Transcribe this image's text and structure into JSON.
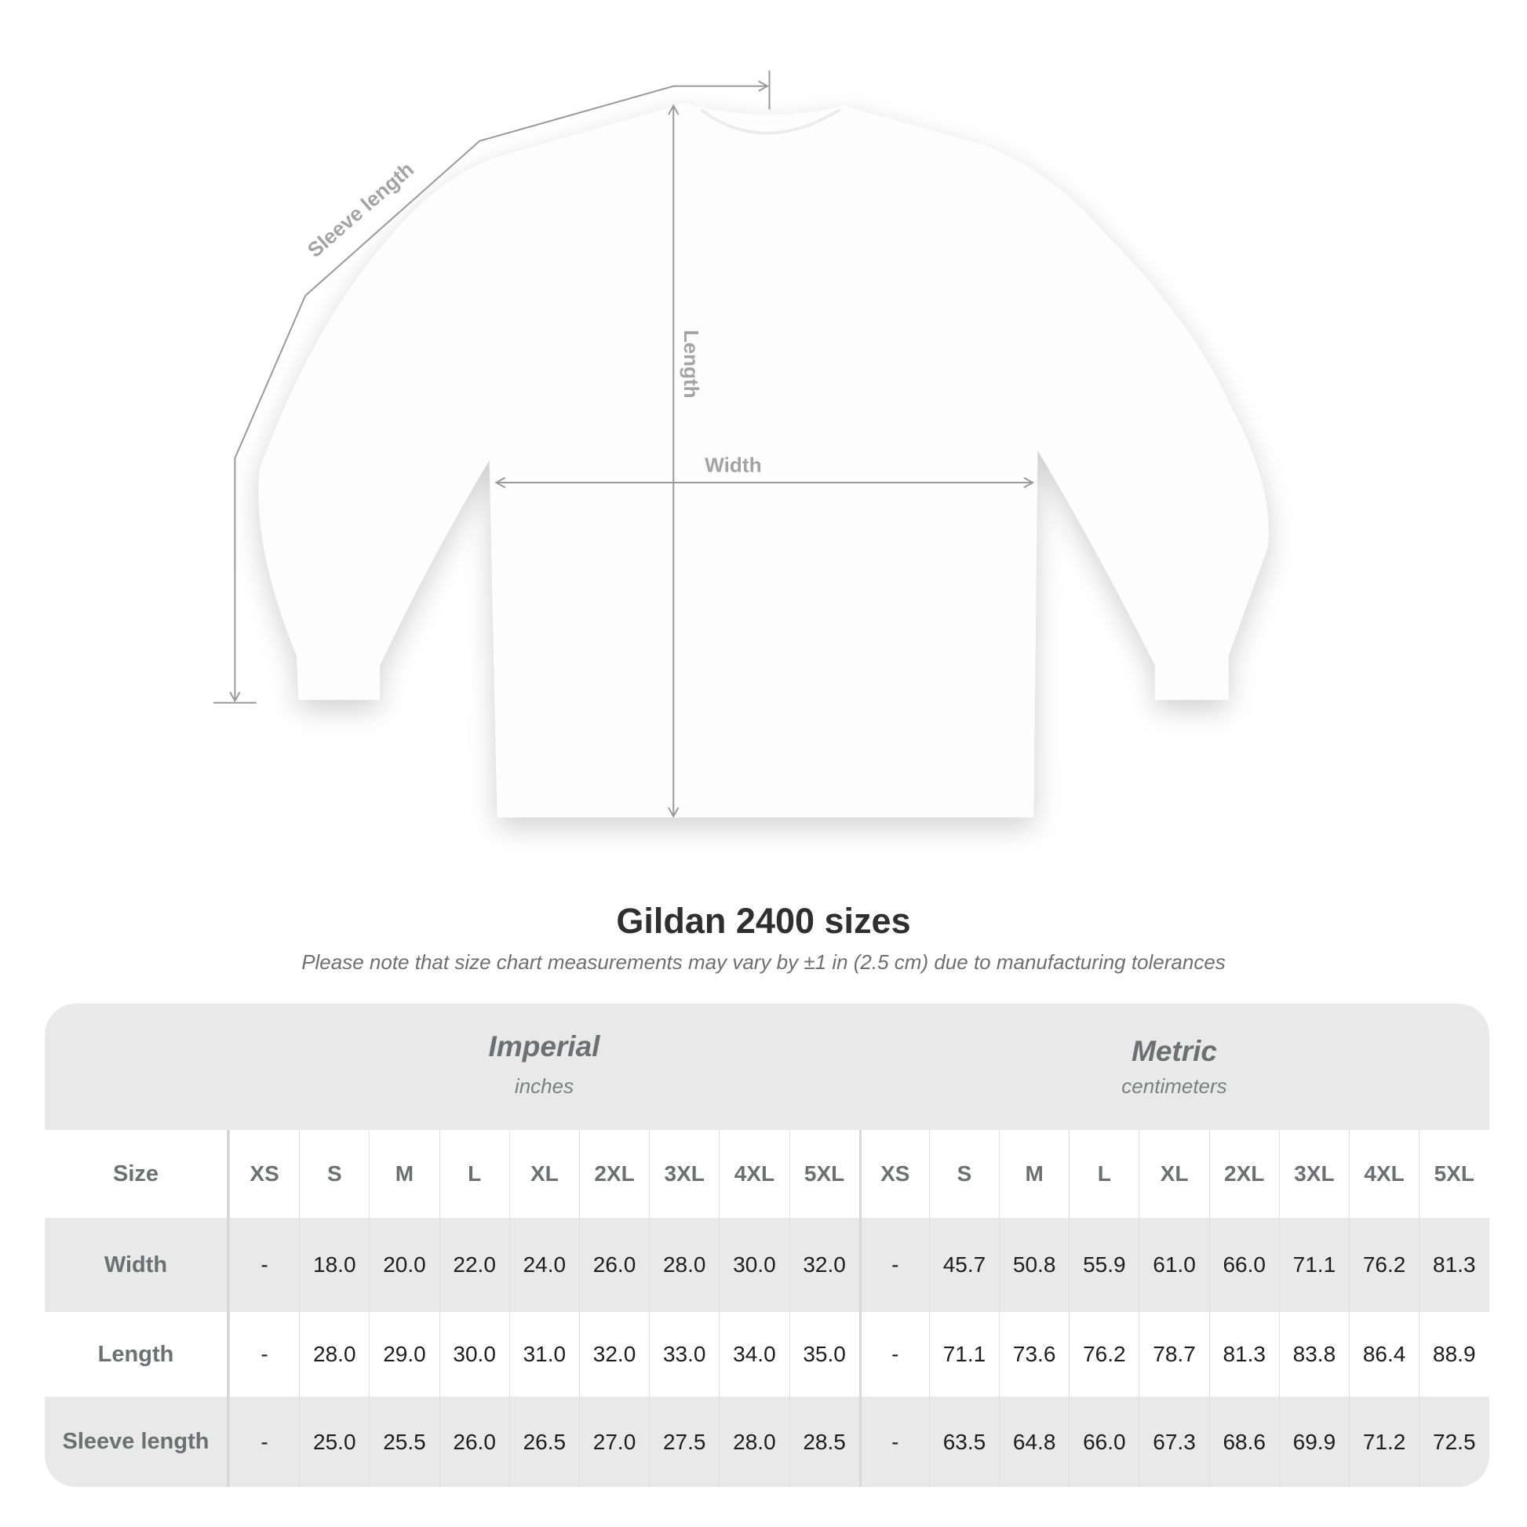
{
  "diagram": {
    "labels": {
      "sleeve": "Sleeve length",
      "length": "Length",
      "width": "Width"
    },
    "line_color": "#9a9a9a"
  },
  "title": "Gildan 2400 sizes",
  "note": "Please note that size chart measurements may vary by ±1 in (2.5 cm) due to manufacturing tolerances",
  "table": {
    "imperial": {
      "name": "Imperial",
      "unit": "inches"
    },
    "metric": {
      "name": "Metric",
      "unit": "centimeters"
    },
    "size_label": "Size",
    "sizes": [
      "XS",
      "S",
      "M",
      "L",
      "XL",
      "2XL",
      "3XL",
      "4XL",
      "5XL"
    ],
    "rows": [
      {
        "label": "Width",
        "imperial": [
          "-",
          "18.0",
          "20.0",
          "22.0",
          "24.0",
          "26.0",
          "28.0",
          "30.0",
          "32.0"
        ],
        "metric": [
          "-",
          "45.7",
          "50.8",
          "55.9",
          "61.0",
          "66.0",
          "71.1",
          "76.2",
          "81.3"
        ]
      },
      {
        "label": "Length",
        "imperial": [
          "-",
          "28.0",
          "29.0",
          "30.0",
          "31.0",
          "32.0",
          "33.0",
          "34.0",
          "35.0"
        ],
        "metric": [
          "-",
          "71.1",
          "73.6",
          "76.2",
          "78.7",
          "81.3",
          "83.8",
          "86.4",
          "88.9"
        ]
      },
      {
        "label": "Sleeve length",
        "imperial": [
          "-",
          "25.0",
          "25.5",
          "26.0",
          "26.5",
          "27.0",
          "27.5",
          "28.0",
          "28.5"
        ],
        "metric": [
          "-",
          "63.5",
          "64.8",
          "66.0",
          "67.3",
          "68.6",
          "69.9",
          "71.2",
          "72.5"
        ]
      }
    ],
    "colors": {
      "band": "#e9e9e9",
      "header_text": "#6b7170",
      "value_text": "#1e1e1e"
    }
  }
}
